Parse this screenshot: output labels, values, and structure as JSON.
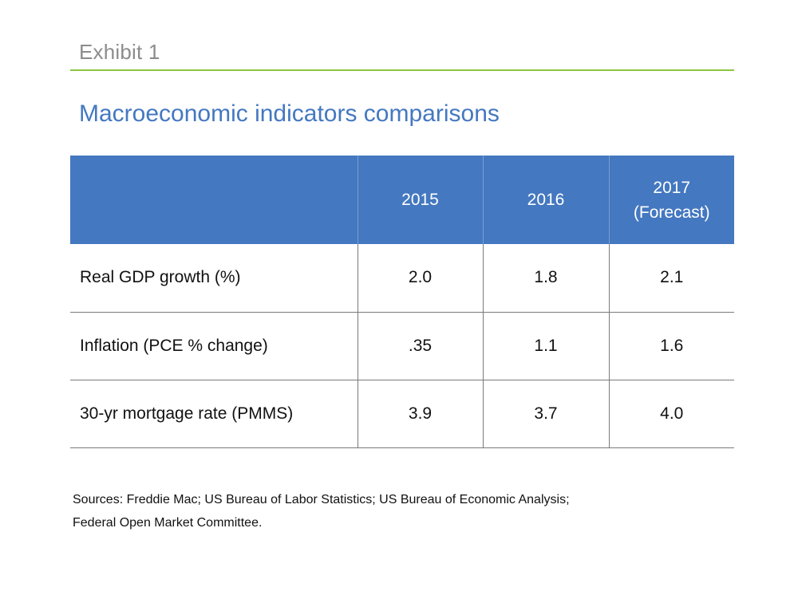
{
  "header": {
    "exhibit_label": "Exhibit 1",
    "title": "Macroeconomic indicators comparisons"
  },
  "colors": {
    "accent_green": "#8dc63f",
    "brand_blue": "#4478c0"
  },
  "chart_data": {
    "type": "table",
    "title": "Macroeconomic indicators comparisons",
    "columns": [
      "",
      "2015",
      "2016",
      "2017 (Forecast)"
    ],
    "column_lines": [
      [
        ""
      ],
      [
        "2015"
      ],
      [
        "2016"
      ],
      [
        "2017",
        "(Forecast)"
      ]
    ],
    "rows": [
      {
        "label": "Real GDP growth (%)",
        "values": [
          "2.0",
          "1.8",
          "2.1"
        ]
      },
      {
        "label": "Inflation (PCE % change)",
        "values": [
          ".35",
          "1.1",
          "1.6"
        ]
      },
      {
        "label": "30-yr mortgage rate (PMMS)",
        "values": [
          "3.9",
          "3.7",
          "4.0"
        ]
      }
    ]
  },
  "footer": {
    "sources_line1": "Sources: Freddie Mac; US Bureau of Labor Statistics; US Bureau of Economic Analysis;",
    "sources_line2": "Federal Open Market Committee."
  }
}
